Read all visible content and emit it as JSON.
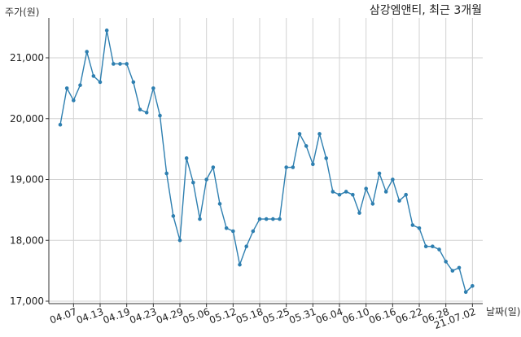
{
  "chart_data": {
    "type": "line",
    "title": "삼강엠앤티, 최근 3개월",
    "ylabel": "주가(원)",
    "xlabel": "날짜(일)",
    "ylim": [
      17000,
      21600
    ],
    "grid": true,
    "yticks": [
      17000,
      18000,
      19000,
      20000,
      21000
    ],
    "ytick_labels": [
      "17,000",
      "18,000",
      "19,000",
      "20,000",
      "21,000"
    ],
    "xtick_labels": [
      "04.07",
      "04.13",
      "04.19",
      "04.23",
      "04.29",
      "05.06",
      "05.12",
      "05.18",
      "05.25",
      "05.31",
      "06.04",
      "06.10",
      "06.16",
      "06.22",
      "06.28",
      "21.07.02"
    ],
    "xtick_index": [
      2,
      6,
      10,
      14,
      18,
      22,
      26,
      30,
      34,
      38,
      42,
      46,
      50,
      54,
      58,
      62
    ],
    "color": "#2e7fb0",
    "series": [
      {
        "values": [
          19900,
          20500,
          20300,
          20550,
          21100,
          20700,
          20600,
          21450,
          20900,
          20900,
          20900,
          20600,
          20150,
          20100,
          20500,
          20050,
          19100,
          18400,
          18000,
          19350,
          18950,
          18350,
          19000,
          19200,
          18600,
          18200,
          18150,
          17600,
          17900,
          18150,
          18350,
          18350,
          18350,
          18350,
          19200,
          19200,
          19750,
          19550,
          19250,
          19750,
          19350,
          18800,
          18750,
          18800,
          18750,
          18450,
          18850,
          18600,
          19100,
          18800,
          19000,
          18650,
          18750,
          18250,
          18200,
          17900,
          17900,
          17850,
          17650,
          17500,
          17550,
          17150,
          17250
        ]
      }
    ]
  }
}
